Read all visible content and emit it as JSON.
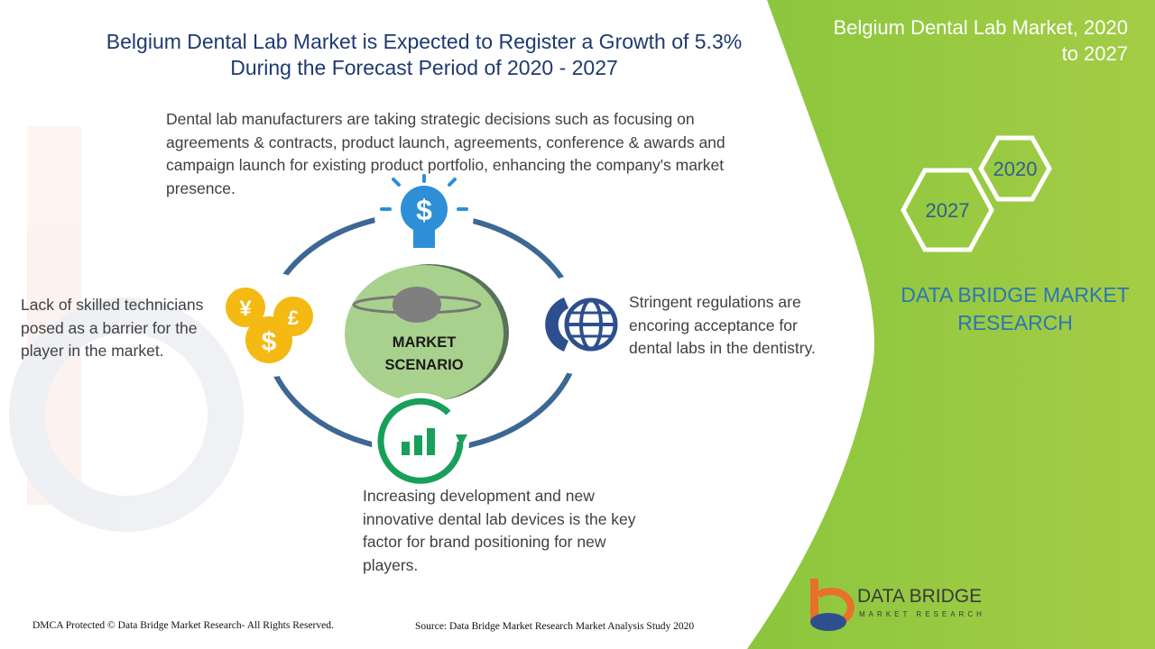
{
  "header": {
    "title_lines": [
      "Belgium Dental Lab Market is Expected to Register a Growth of 5.3%",
      "During the Forecast Period of 2020 - 2027"
    ]
  },
  "intro": {
    "lines": [
      "Dental lab manufacturers are taking strategic decisions such as focusing on",
      "agreements & contracts, product launch, agreements, conference  & awards and",
      "campaign launch for existing product portfolio, enhancing the company's market",
      "presence."
    ]
  },
  "center": {
    "lines": [
      "MARKET",
      "SCENARIO"
    ]
  },
  "left": {
    "lines": [
      "Lack of skilled technicians",
      "posed as a barrier for the",
      "player in the market."
    ]
  },
  "right": {
    "lines": [
      "Stringent regulations are",
      "encoring acceptance for",
      "dental labs in the dentistry."
    ]
  },
  "bottom": {
    "lines": [
      "Increasing development  and new",
      "innovative dental lab devices is the key",
      "factor for brand positioning for new",
      "players."
    ]
  },
  "panel": {
    "title_lines": [
      "Belgium Dental Lab Market, 2020",
      "to 2027"
    ],
    "hexagons": [
      "2020",
      "2027"
    ],
    "brand_lines": [
      "DATA BRIDGE MARKET",
      "RESEARCH"
    ]
  },
  "logo": {
    "name": "DATA BRIDGE",
    "tagline": "MARKET RESEARCH"
  },
  "footer": {
    "copyright": "DMCA Protected © Data Bridge Market Research- All Rights Reserved.",
    "source": "Source: Data Bridge Market Research Market Analysis Study 2020"
  }
}
